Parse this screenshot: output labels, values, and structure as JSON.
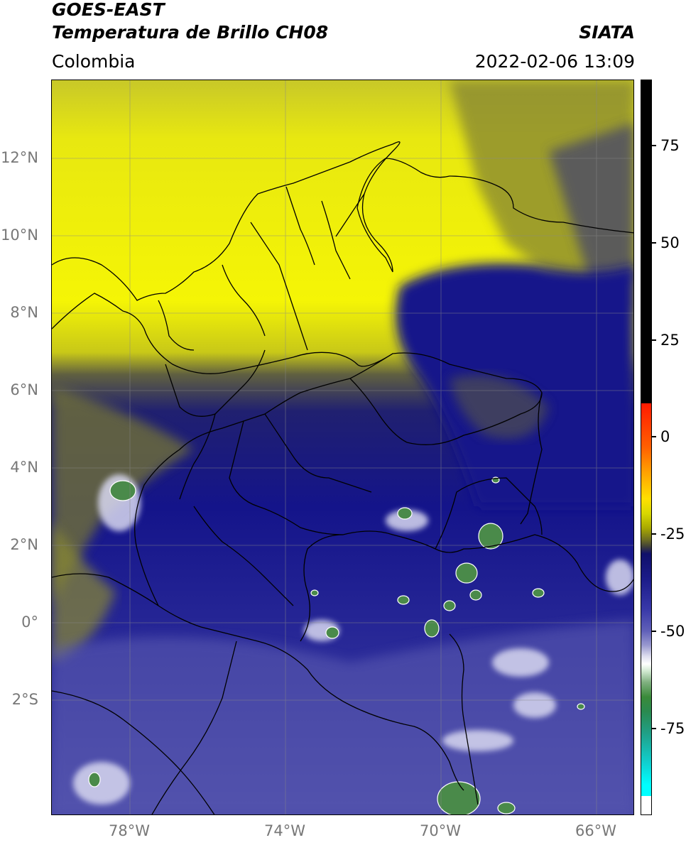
{
  "header": {
    "satellite": "GOES-EAST",
    "product": "Temperatura de Brillo CH08",
    "agency": "SIATA",
    "region": "Colombia",
    "datetime": "2022-02-06 13:09"
  },
  "map": {
    "lat_ticks": [
      "12°N",
      "10°N",
      "8°N",
      "6°N",
      "4°N",
      "2°N",
      "0°",
      "2°S"
    ],
    "lon_ticks": [
      "78°W",
      "74°W",
      "70°W",
      "66°W"
    ],
    "colors": {
      "warm_yellow": "#ffff00",
      "olive": "#b8b818",
      "dark_navy": "#14148a",
      "mid_blue": "#4a4aa8",
      "light_blue": "#a0a0d8",
      "cold_green": "#4a8a4a",
      "coastline": "#000000"
    }
  },
  "colorbar": {
    "ticks": [
      "75",
      "50",
      "25",
      "0",
      "-25",
      "-50",
      "-75"
    ]
  }
}
